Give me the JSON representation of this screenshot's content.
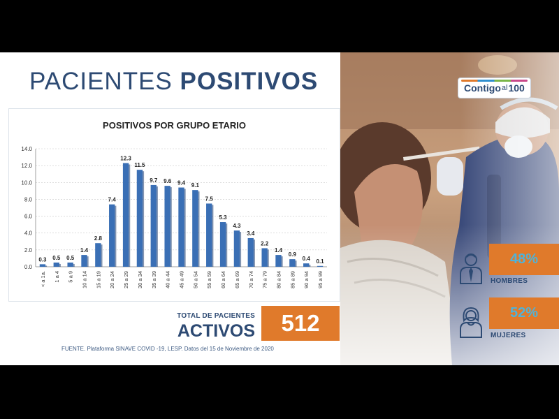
{
  "header": {
    "title_light": "PACIENTES",
    "title_bold": "POSITIVOS"
  },
  "chart_data": {
    "type": "bar",
    "title": "POSITIVOS POR GRUPO ETARIO",
    "categories": [
      "< a 1a.",
      "1 a 4",
      "5 a 9",
      "10 a 14",
      "15 a 19",
      "20 a 24",
      "25 a 29",
      "30 a 34",
      "35 a 39",
      "40 a 44",
      "45 a 49",
      "50 a 54",
      "55 a 59",
      "60 a 64",
      "65 a 69",
      "70 a 74",
      "75 a 79",
      "80 a 84",
      "85 a 89",
      "90 a 94",
      "95 a 99"
    ],
    "values": [
      0.3,
      0.5,
      0.5,
      1.4,
      2.8,
      7.4,
      12.3,
      11.5,
      9.7,
      9.6,
      9.4,
      9.1,
      7.5,
      5.3,
      4.3,
      3.4,
      2.2,
      1.4,
      0.9,
      0.4,
      0.1
    ],
    "value_labels": [
      "0.3",
      "0.5",
      "0.5",
      "1.4",
      "2.8",
      "7.4",
      "12.3",
      "11.5",
      "9.7",
      "9.6",
      "9.4",
      "9.1",
      "7.5",
      "5.3",
      "4.3",
      "3.4",
      "2.2",
      "1.4",
      "0.9",
      "0.4",
      "0.1"
    ],
    "yticks": [
      "0.0",
      "2.0",
      "4.0",
      "6.0",
      "8.0",
      "10.0",
      "12.0",
      "14.0"
    ],
    "ylim": [
      0,
      14
    ],
    "grid": true,
    "color": "#3a6fb5"
  },
  "total": {
    "label_small": "TOTAL DE PACIENTES",
    "label_big": "ACTIVOS",
    "value": "512"
  },
  "source": "FUENTE. Plataforma SINAVE COVID -19, LESP. Datos del 15 de Noviembre de 2020",
  "logo": {
    "part1": "Contigo",
    "part2": "al",
    "part3": "100"
  },
  "gender": {
    "men": {
      "percent": "48%",
      "label": "HOMBRES"
    },
    "women": {
      "percent": "52%",
      "label": "MUJERES"
    }
  },
  "colors": {
    "navy": "#2d4a73",
    "orange": "#e07a2b",
    "bar": "#3a6fb5",
    "percent_text": "#4fb3d9"
  }
}
